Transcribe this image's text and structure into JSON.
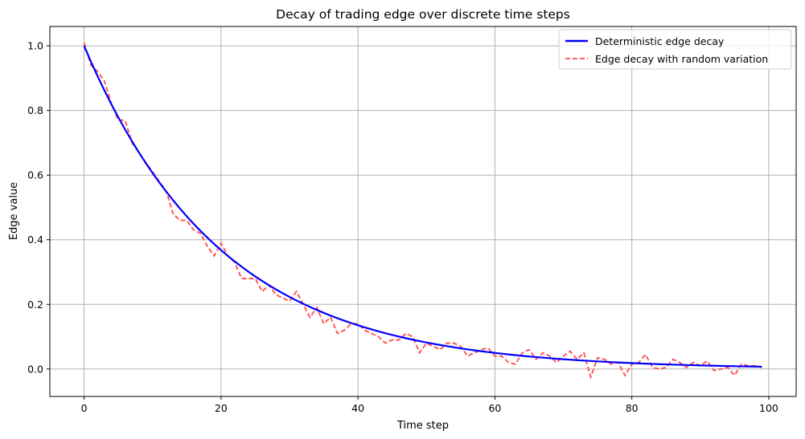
{
  "chart_data": {
    "type": "line",
    "title": "Decay of trading edge over discrete time steps",
    "xlabel": "Time step",
    "ylabel": "Edge value",
    "xlim": [
      -5,
      104
    ],
    "ylim": [
      -0.085,
      1.06
    ],
    "xticks": [
      0,
      20,
      40,
      60,
      80,
      100
    ],
    "yticks": [
      0.0,
      0.2,
      0.4,
      0.6,
      0.8,
      1.0
    ],
    "grid": true,
    "legend_position": "top-right",
    "x_start": 0,
    "x_end": 99,
    "series": [
      {
        "name": "Deterministic edge decay",
        "color": "#0000ff",
        "style": "solid",
        "decay_rate": 0.05,
        "formula": "y = exp(-0.05 * t)"
      },
      {
        "name": "Edge decay with random variation",
        "color": "#ff4c4c",
        "style": "dashed",
        "x": [
          0,
          1,
          2,
          3,
          4,
          5,
          6,
          7,
          8,
          9,
          10,
          11,
          12,
          13,
          14,
          15,
          16,
          17,
          18,
          19,
          20,
          21,
          22,
          23,
          24,
          25,
          26,
          27,
          28,
          29,
          30,
          31,
          32,
          33,
          34,
          35,
          36,
          37,
          38,
          39,
          40,
          41,
          42,
          43,
          44,
          45,
          46,
          47,
          48,
          49,
          50,
          51,
          52,
          53,
          54,
          55,
          56,
          57,
          58,
          59,
          60,
          61,
          62,
          63,
          64,
          65,
          66,
          67,
          68,
          69,
          70,
          71,
          72,
          73,
          74,
          75,
          76,
          77,
          78,
          79,
          80,
          81,
          82,
          83,
          84,
          85,
          86,
          87,
          88,
          89,
          90,
          91,
          92,
          93,
          94,
          95,
          96,
          97,
          98,
          99
        ],
        "values": [
          1.01,
          0.94,
          0.92,
          0.89,
          0.82,
          0.77,
          0.77,
          0.7,
          0.67,
          0.64,
          0.61,
          0.58,
          0.55,
          0.48,
          0.46,
          0.46,
          0.43,
          0.42,
          0.38,
          0.35,
          0.39,
          0.35,
          0.33,
          0.28,
          0.28,
          0.28,
          0.24,
          0.26,
          0.23,
          0.22,
          0.21,
          0.24,
          0.2,
          0.16,
          0.19,
          0.14,
          0.16,
          0.11,
          0.12,
          0.14,
          0.14,
          0.12,
          0.11,
          0.1,
          0.08,
          0.09,
          0.09,
          0.11,
          0.1,
          0.05,
          0.08,
          0.07,
          0.06,
          0.08,
          0.08,
          0.07,
          0.04,
          0.05,
          0.06,
          0.065,
          0.04,
          0.04,
          0.02,
          0.015,
          0.05,
          0.06,
          0.03,
          0.05,
          0.04,
          0.02,
          0.04,
          0.055,
          0.03,
          0.05,
          -0.025,
          0.035,
          0.03,
          0.015,
          0.02,
          -0.02,
          0.015,
          0.02,
          0.045,
          0.005,
          0.0,
          0.005,
          0.03,
          0.02,
          0.005,
          0.02,
          0.01,
          0.025,
          -0.005,
          0.0,
          0.005,
          -0.02,
          0.015,
          0.01,
          0.01,
          0.005
        ]
      }
    ]
  }
}
